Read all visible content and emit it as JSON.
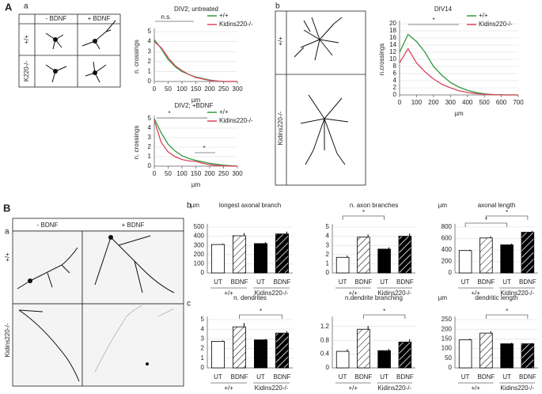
{
  "labels": {
    "panel_A": "A",
    "panel_A_a": "a",
    "A_a_minus": "- BDNF",
    "A_a_plus": "+ BDNF",
    "A_a_wt": "+/+",
    "A_a_ko": "K220-/-",
    "panel_A_b": "b",
    "A_b_wt": "+/+",
    "A_b_ko": "Kidins220-/-",
    "panel_B": "B",
    "panel_B_a": "a",
    "B_a_minus": "- BDNF",
    "B_a_plus": "+ BDNF",
    "B_a_wt": "+/+",
    "B_a_ko": "Kidins220-/-",
    "panel_B_b": "b",
    "panel_B_c": "c"
  },
  "chart_data": [
    {
      "type": "line",
      "title": "DIV2; untreated",
      "x_label": "µm",
      "y_label": "n. crossings",
      "x": [
        0,
        25,
        50,
        75,
        100,
        125,
        150,
        175,
        200,
        225,
        250,
        275,
        300
      ],
      "series": [
        {
          "name": "+/+",
          "color": "#2e9a3a",
          "values": [
            4.2,
            3.3,
            2.2,
            1.5,
            1.0,
            0.7,
            0.45,
            0.3,
            0.15,
            0.05,
            0,
            0,
            0
          ]
        },
        {
          "name": "Kidins220-/-",
          "color": "#d9455f",
          "values": [
            4.0,
            3.4,
            2.4,
            1.6,
            1.1,
            0.7,
            0.4,
            0.25,
            0.1,
            0.05,
            0,
            0,
            0
          ]
        }
      ],
      "xlim": [
        0,
        300
      ],
      "xticks": [
        0,
        50,
        100,
        150,
        200,
        250,
        300
      ],
      "ylim": [
        0,
        5
      ],
      "yticks": [
        0,
        1,
        2,
        3,
        4,
        5
      ],
      "grid": true,
      "annotations": [
        "n.s."
      ]
    },
    {
      "type": "line",
      "title": "DIV2; +BDNF",
      "x_label": "µm",
      "y_label": "n. crossings",
      "x": [
        0,
        25,
        50,
        75,
        100,
        125,
        150,
        175,
        200,
        225,
        250,
        275,
        300
      ],
      "series": [
        {
          "name": "+/+",
          "color": "#2e9a3a",
          "values": [
            5.0,
            3.5,
            2.3,
            1.6,
            1.1,
            0.8,
            0.6,
            0.45,
            0.3,
            0.2,
            0.1,
            0.05,
            0
          ]
        },
        {
          "name": "Kidins220-/-",
          "color": "#d9455f",
          "values": [
            4.8,
            2.5,
            1.5,
            1.0,
            0.7,
            0.55,
            0.5,
            0.3,
            0.15,
            0.08,
            0.05,
            0,
            0
          ]
        }
      ],
      "xlim": [
        0,
        300
      ],
      "xticks": [
        0,
        50,
        100,
        150,
        200,
        250,
        300
      ],
      "ylim": [
        0,
        5
      ],
      "yticks": [
        0,
        1,
        2,
        3,
        4,
        5
      ],
      "grid": true,
      "annotations": [
        "*",
        "*"
      ]
    },
    {
      "type": "line",
      "title": "DIV14",
      "x_label": "µm",
      "y_label": "n.crossings",
      "x": [
        0,
        50,
        100,
        150,
        200,
        250,
        300,
        350,
        400,
        450,
        500,
        550,
        600,
        650,
        700
      ],
      "series": [
        {
          "name": "+/+",
          "color": "#2e9a3a",
          "values": [
            12,
            17,
            15,
            12,
            8,
            5.5,
            3.5,
            2.2,
            1.3,
            0.7,
            0.3,
            0.1,
            0.05,
            0,
            0
          ]
        },
        {
          "name": "Kidins220-/-",
          "color": "#d9455f",
          "values": [
            9,
            13,
            9,
            6.5,
            4.5,
            3,
            2,
            1.2,
            0.7,
            0.4,
            0.2,
            0.1,
            0,
            0,
            0
          ]
        }
      ],
      "xlim": [
        0,
        700
      ],
      "xticks": [
        0,
        100,
        200,
        300,
        400,
        500,
        600,
        700
      ],
      "ylim": [
        0,
        20
      ],
      "yticks": [
        0,
        2,
        4,
        6,
        8,
        10,
        12,
        14,
        16,
        18,
        20
      ],
      "grid": true,
      "annotations": [
        "*"
      ]
    },
    {
      "type": "bar",
      "title": "longest axonal branch",
      "y_unit": "µm",
      "categories": [
        "UT",
        "BDNF",
        "UT",
        "BDNF"
      ],
      "groups": [
        "+/+",
        "Kidins220-/-"
      ],
      "values": [
        310,
        405,
        320,
        425
      ],
      "errors": [
        10,
        30,
        15,
        25
      ],
      "colors": [
        "#ffffff",
        "#ffffff",
        "#000000",
        "#000000"
      ],
      "hatched": [
        false,
        true,
        false,
        true
      ],
      "ylim": [
        0,
        500
      ],
      "yticks": [
        0,
        100,
        200,
        300,
        400,
        500
      ],
      "grid": true,
      "annotations": []
    },
    {
      "type": "bar",
      "title": "n. axon branches",
      "categories": [
        "UT",
        "BDNF",
        "UT",
        "BDNF"
      ],
      "groups": [
        "+/+",
        "Kidins220-/-"
      ],
      "values": [
        1.7,
        3.9,
        2.6,
        4.0
      ],
      "errors": [
        0.2,
        0.3,
        0.2,
        0.3
      ],
      "colors": [
        "#ffffff",
        "#ffffff",
        "#000000",
        "#000000"
      ],
      "hatched": [
        false,
        true,
        false,
        true
      ],
      "ylim": [
        0,
        5
      ],
      "yticks": [
        0,
        1,
        2,
        3,
        4,
        5
      ],
      "grid": true,
      "annotations": [
        "*"
      ]
    },
    {
      "type": "bar",
      "title": "axonal length",
      "y_unit": "µm",
      "categories": [
        "UT",
        "BDNF",
        "UT",
        "BDNF"
      ],
      "groups": [
        "+/+",
        "Kidins220-/-"
      ],
      "values": [
        390,
        610,
        490,
        710
      ],
      "errors": [
        15,
        30,
        20,
        25
      ],
      "colors": [
        "#ffffff",
        "#ffffff",
        "#000000",
        "#000000"
      ],
      "hatched": [
        false,
        true,
        false,
        true
      ],
      "ylim": [
        0,
        800
      ],
      "yticks": [
        0,
        200,
        400,
        600,
        800
      ],
      "grid": true,
      "annotations": [
        "*",
        "*"
      ]
    },
    {
      "type": "bar",
      "title": "n. dendrites",
      "categories": [
        "UT",
        "BDNF",
        "UT",
        "BDNF"
      ],
      "groups": [
        "+/+",
        "Kidins220-/-"
      ],
      "values": [
        2.75,
        4.25,
        2.9,
        3.6
      ],
      "errors": [
        0.1,
        0.4,
        0.1,
        0.2
      ],
      "colors": [
        "#ffffff",
        "#ffffff",
        "#000000",
        "#000000"
      ],
      "hatched": [
        false,
        true,
        false,
        true
      ],
      "ylim": [
        0,
        5
      ],
      "yticks": [
        0,
        1,
        2,
        3,
        4,
        5
      ],
      "grid": true,
      "annotations": [
        "*"
      ]
    },
    {
      "type": "bar",
      "title": "n.dendrite branching",
      "categories": [
        "UT",
        "BDNF",
        "UT",
        "BDNF"
      ],
      "groups": [
        "+/+",
        "Kidins220-/-"
      ],
      "values": [
        0.48,
        1.12,
        0.5,
        0.75
      ],
      "errors": [
        0.06,
        0.1,
        0.05,
        0.08
      ],
      "colors": [
        "#ffffff",
        "#ffffff",
        "#000000",
        "#000000"
      ],
      "hatched": [
        false,
        true,
        false,
        true
      ],
      "ylim": [
        0,
        1.4
      ],
      "yticks": [
        0,
        0.4,
        0.8,
        1.2
      ],
      "grid": true,
      "annotations": [
        "*"
      ]
    },
    {
      "type": "bar",
      "title": "dendritic length",
      "y_unit": "µm",
      "categories": [
        "UT",
        "BDNF",
        "UT",
        "BDNF"
      ],
      "groups": [
        "+/+",
        "Kidins220-/-"
      ],
      "values": [
        145,
        180,
        125,
        125
      ],
      "errors": [
        6,
        10,
        5,
        4
      ],
      "colors": [
        "#ffffff",
        "#ffffff",
        "#000000",
        "#000000"
      ],
      "hatched": [
        false,
        true,
        false,
        true
      ],
      "ylim": [
        0,
        250
      ],
      "yticks": [
        0,
        50,
        100,
        150,
        200,
        250
      ],
      "grid": true,
      "annotations": [
        "*"
      ]
    }
  ]
}
